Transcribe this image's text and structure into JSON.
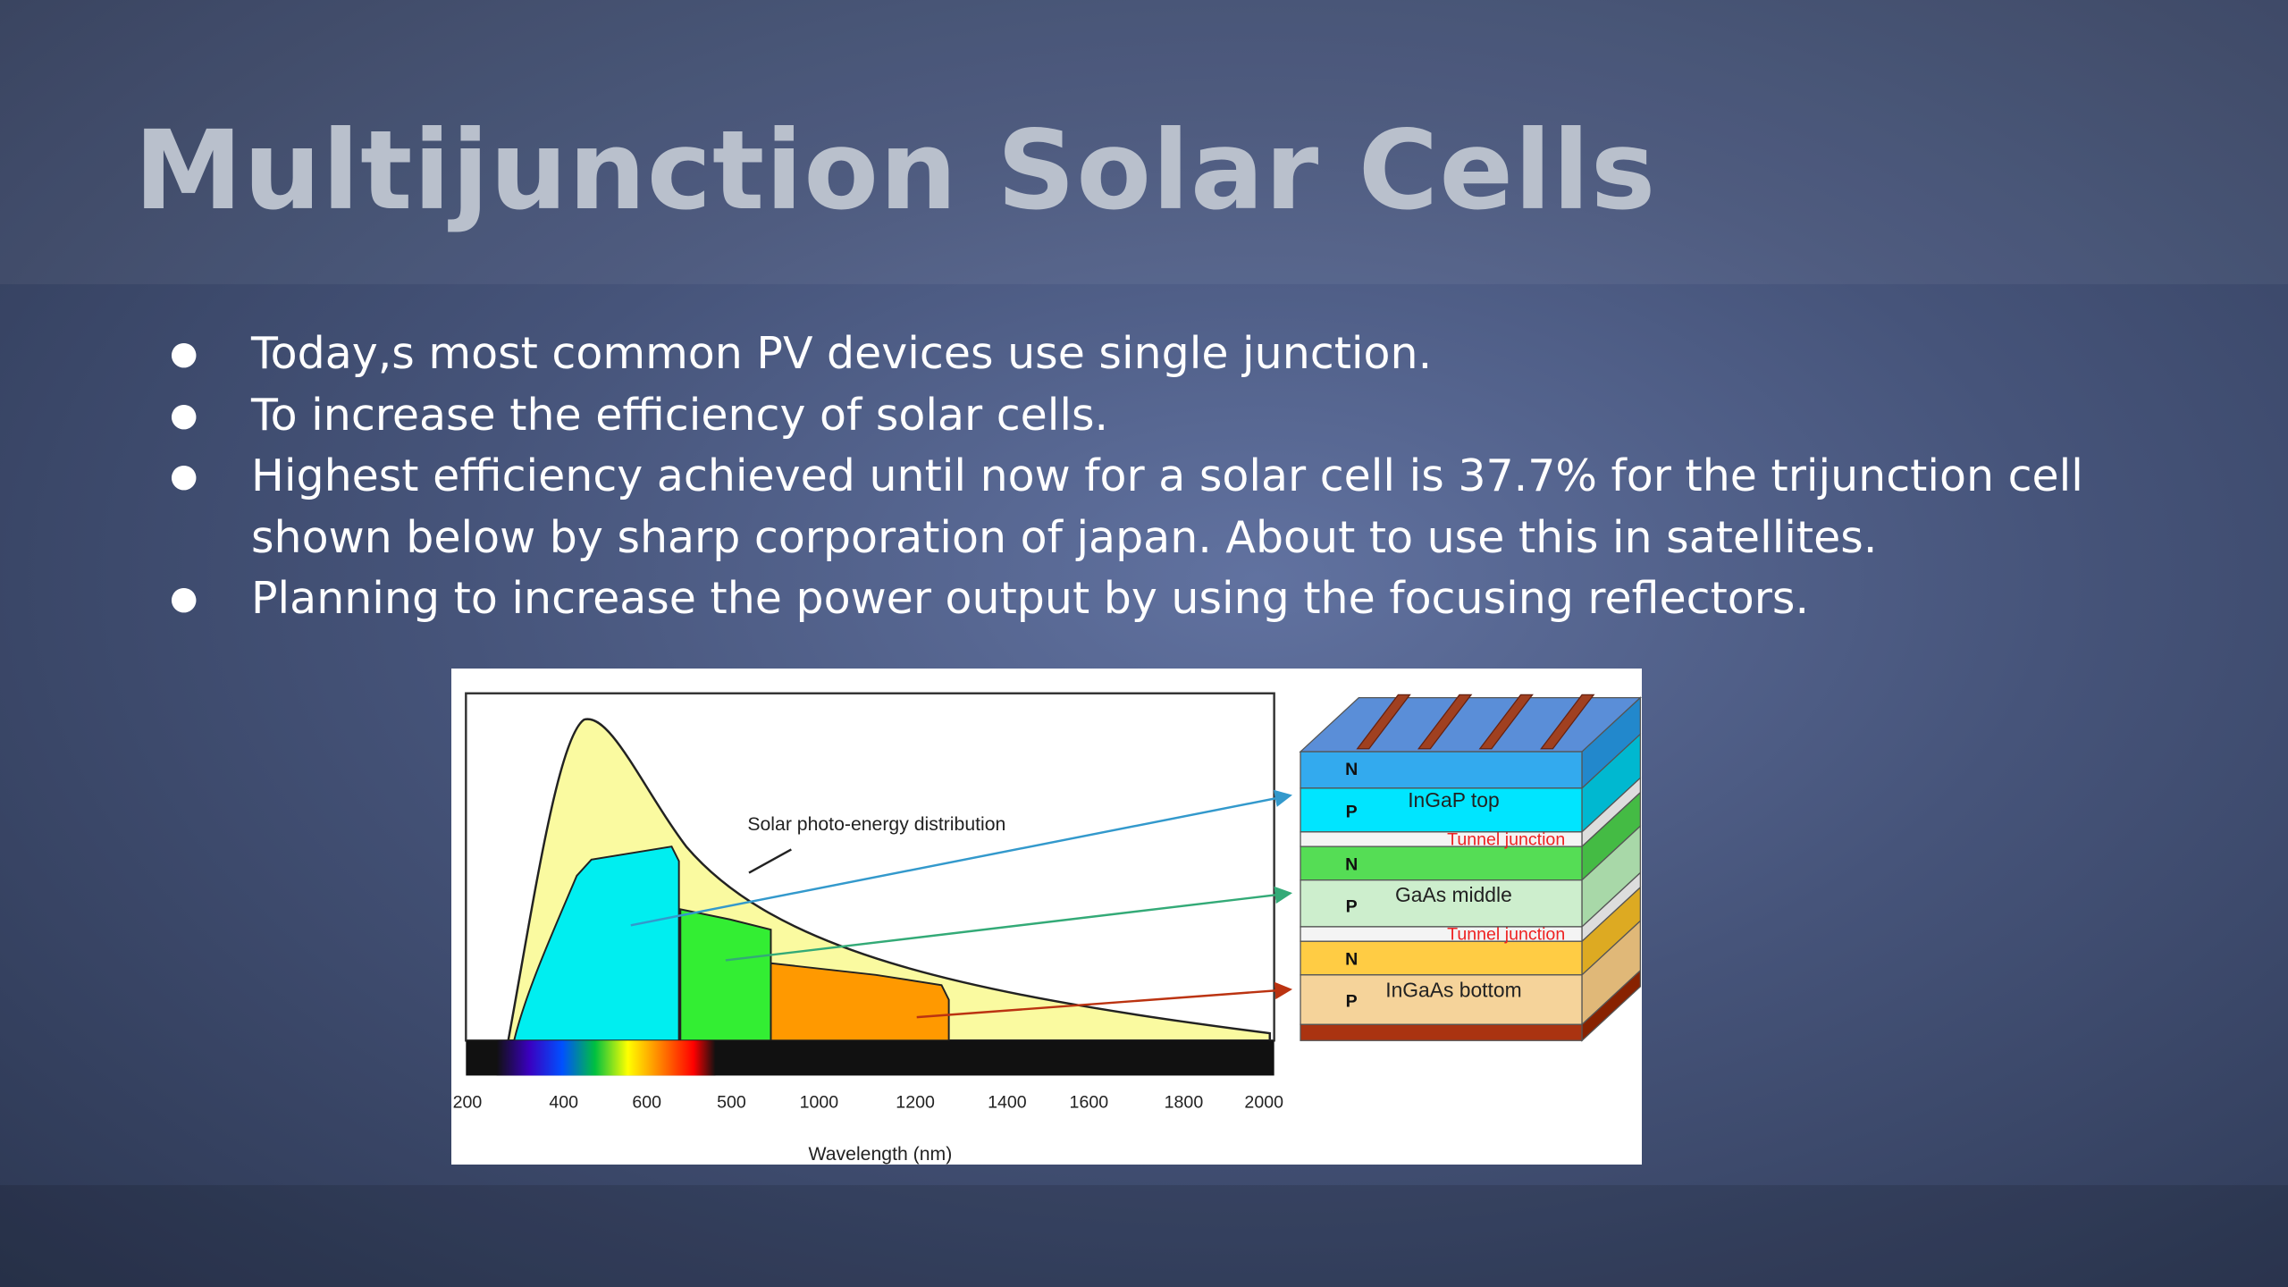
{
  "header": {
    "title": "Multijunction Solar Cells"
  },
  "bullets": [
    "Today,s most common PV devices use single junction.",
    "To increase the efficiency of solar cells.",
    "Highest efficiency achieved until now for a solar cell is 37.7% for the trijunction cell shown below by  sharp corporation of japan. About to use this in satellites.",
    "Planning to increase the power output by using the focusing reflectors."
  ],
  "figure": {
    "curve_label": "Solar photo-energy distribution",
    "axis_ticks": [
      "200",
      "400",
      "600",
      "500",
      "1000",
      "1200",
      "1400",
      "1600",
      "1800",
      "2000"
    ],
    "axis_label": "Wavelength (nm)",
    "junctions": [
      {
        "n": "N",
        "p": "P",
        "name": "InGaP top"
      },
      {
        "n": "N",
        "p": "P",
        "name": "GaAs middle"
      },
      {
        "n": "N",
        "p": "P",
        "name": "InGaAs bottom"
      }
    ],
    "tunnels": [
      "Tunnel junction",
      "Tunnel junction"
    ]
  }
}
